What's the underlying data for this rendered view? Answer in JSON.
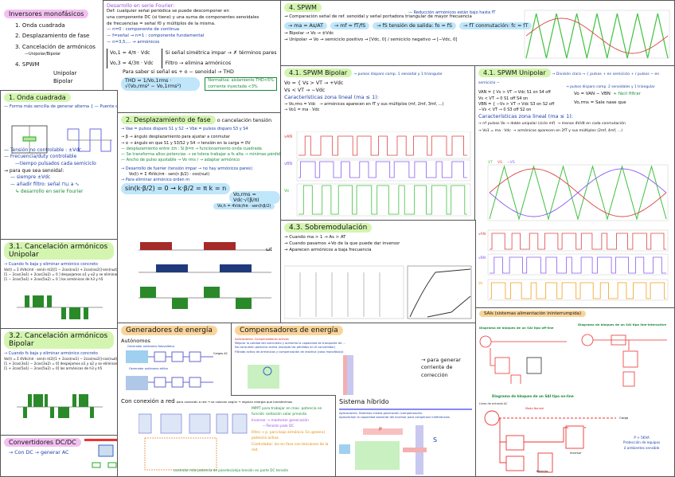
{
  "inversores": {
    "title": "Inversores monofásicos",
    "items": [
      "1. Onda cuadrada",
      "2. Desplazamiento de fase",
      "3. Cancelación de armónicos",
      "—Unipolar/Bipolar",
      "4. SPWM",
      "Unipolar",
      "Bipolar"
    ]
  },
  "fourier": {
    "title": "Desarrollo en serie Fourier:",
    "def": [
      "Def: cualquier señal periódica se puede descomponer en",
      "una componente DC (si tiene) y una suma de componentes senoidales",
      "de frecuencias = señal f0 y múltiplos de la misma."
    ],
    "notes": [
      "— n=0 : componente de continua",
      "— f=señal → n=1 : componente fundamental",
      "— n=3,5,... → armónicos"
    ],
    "eq1": "Vo,1 = 4/π · Vdc",
    "eq3": "Vo,3 = 4/3π · Vdc",
    "side": [
      "Si señal simétrica impar → ✗ términos pares",
      "Filtro → elimina armónicos"
    ],
    "thd_note": "Para saber si señal es + o − senoidal → THD",
    "thd": "THD = 1/Vo,1rms · √(Vo,rms² − Vo,1rms²)",
    "norma": [
      "Normativa: aislamiento THD<5%",
      "corriente inyectada <3%"
    ]
  },
  "onda": {
    "title": "1. Onda cuadrada",
    "lines": [
      "— Forma más sencilla de generar alterna { — Puente completo / — Carga resistiva",
      "— Tensión no controlable : ±Vdc",
      "— Frecuencia/duty controlable",
      "—tiempo pulsados cada semiciclo",
      "→ para que sea senoidal:",
      "— siempre ±Vdc",
      "— añadir filtro: señal ⊓⊔ a ∿",
      "↳ desarrollo en serie Fourier"
    ]
  },
  "desp": {
    "title": "2. Desplazamiento de fase",
    "subtitle": "o cancelación tensión",
    "lines": [
      "→ Vae = pulsos disparo S1 y S2   → Vbe = pulsos disparo S3 y S4",
      "→ β → ángulo desplazamiento para ajustar a conmutar",
      "→ α → ángulo en que S1 y S3/S2 y S4 → tensión en la carga = 0V",
      "— desplazamiento entre ±π : Si β=π → funcionamiento onda cuadrada",
      "— Se transforma altos potencias → se tolera trabajar a fs alta → mínimas pérdidas",
      "— Ancho de pulso ajustable → Vo rms / → adaptar armónico",
      "→ Desarrollo de fuerier (tensión impar → no hay armónicos pares):",
      "Vo(t) = Σ 4Vdc/nπ · sen(n β/2) · cos(nωt)",
      "→ Para eliminar armónico orden m",
      "sin(k·β/2) = 0 → k·β/2 = π      k = n"
    ],
    "vrms": "Vo,rms = Vdc·√(β/π)",
    "vh": "Vo,h = 4Vdc/hπ · sen(hβ/2)",
    "axis": "ωt"
  },
  "c31": {
    "title": "3.1. Cancelación armónicos Unipolar",
    "lines": [
      "→ Cuando fs baja y eliminar armónico concreto",
      "Vo(t) = Σ 4Vdc/nπ · sen(n π/2)[1 − 2cos(nα1) + 2cos(nα2)]·sen(nωt)",
      "[1 − 2cos(3α1) + 2cos(3α2) = 0  ] despejamos α1 y α2 y se eliminan",
      "[1 − 2cos(5α1) + 2cos(5α2) = 0  ] los armónicos de h3 y h5"
    ]
  },
  "c32": {
    "title": "3.2. Cancelación armónicos Bipolar",
    "lines": [
      "→ Cuando fs baja y eliminar armónico concreto",
      "Vo(t) = Σ 4Vdc/nπ · sen(n π/2)[1 + 2cos(nα1) − 2cos(nα2)]·cos(nωt)",
      "[1 + 2cos(3α1) − 2cos(3α2) = 0] despejamos α1 y α2 y se eliminan",
      "[1 + 2cos(5α1) − 2cos(5α2) = 0] los armónicos de h3 y h5"
    ]
  },
  "dcdc": {
    "title": "Convertidores DC/DC",
    "line": "→ Con DC → generar AC"
  },
  "spwm": {
    "title": "4. SPWM",
    "reduccion": "— Reducción armónicos están bajo hasta fT",
    "lines": [
      "→ Comparación señal de ref. senoidal y señal portadora triangular de mayor frecuencia"
    ],
    "ma": "→ ma = As/AT",
    "mf": "→ mf = fT/fS",
    "fo": "→ fS tensión de salida: fo = fS",
    "fc": "→ fT conmutación: fc = fT",
    "bip": "→ Bipolar → Vo → ±Vdc",
    "uni": "→ Unipolar → Vo → semiciclo positivo → [Vdc, 0] / semiciclo negativo → [−Vdc, 0]",
    "chart": {
      "labels": [
        "VT",
        "VS",
        "AT",
        "AS",
        "TT",
        "TS"
      ]
    }
  },
  "bip": {
    "title": "4.1. SPWM Bipolar",
    "note": "→ pulsos disparo comp. 1 senoidal y 1 triangular",
    "eq": [
      "Vo = { Vs > VT → +Vdc",
      "       Vs < VT → −Vdc"
    ],
    "car": "Características zona lineal (ma ≤ 1):",
    "c": [
      "→ Vo,rms = Vdc",
      "→ armónicos aparecen en fT y sus múltiplos (mf, 2mf, 3mf, ...)",
      "→ Vo1 = ma · Vdc"
    ],
    "labels": [
      "vAN",
      "vBN",
      "Vo"
    ]
  },
  "uni": {
    "title": "4.1. SPWM Unipolar",
    "div": "→ División clara → { pulsos + en semiciclo + / pulsos − en semiciclo −",
    "note": "→ pulsos disparo comp. 2 senoidales y 1 triangular",
    "eq": [
      "VAN = { Vs > VT → Vdc  S1 on S4 off",
      "        Vs < VT → 0   S1 off S4 on",
      "VBN = { −Vs > VT → Vdc  S3 on S2 off",
      "        −Vs < VT → 0   S3 off S2 on"
    ],
    "vo": "Vo = VAN − VBN",
    "filt": "+ fácil filtrar",
    "vorms": "Vo,rms = Sale nase que",
    "car": "Características zona lineal (ma ≤ 1):",
    "c": [
      "→ nº pulsos Vo → doble unipolar (ciclo mf)",
      "→ menos dV/dt en cada conmutación",
      "→ Vo1 = ma · Vdc",
      "→ armónicos aparecen en 2fT y sus múltiplos (2mf, 4mf, ...)"
    ],
    "labels": [
      "VT",
      "VS",
      "−VS",
      "vAN",
      "vBN",
      "Vo"
    ]
  },
  "sobre": {
    "title": "4.3. Sobremodulación",
    "lines": [
      "→ Cuando ma > 1 → As > AT",
      "→ Cuando pasamos +Vo de la que puede dar inversor",
      "→ Aparecen armónicos a baja frecuencia"
    ]
  },
  "gen": {
    "title": "Generadores de energía",
    "aut": "Autónomos",
    "labels": [
      "Generador autónomo fotovoltaico",
      "Generador autónomo eólico",
      "Baterías",
      "Inversor",
      "Cargas AC",
      "Cargas DC"
    ],
    "red": "Con conexión a red",
    "red_note": "para conexión a red → se colocan según → regulan energía que transferimos",
    "red_lines": [
      "MPPT para trabajar en max. potencia en función radiación solar prevista",
      "Inversor → mantener generación",
      "—Tensión palo DC",
      "Filtro → p. para bajo armónico. En general potencia activa",
      "Controlador: Ios en fase con tensiones de la red.",
      "controlar más potencia de paneles/aleja tensión en parte DC tensión"
    ]
  },
  "comp": {
    "title": "Compensadores de energía",
    "apl": [
      "Aplicaciones: Compensadores activos",
      "Mejorar la calidad del suministro y aumenta la capacidad de transporte de ...",
      "No consumen potencia activa (excepto las pérdidas en el convertidor)",
      "Filtrado activo de armónicos y compensación de reactiva (caso monofásico)"
    ],
    "note": "→ para generar corriente de corrección"
  },
  "hib": {
    "title": "Sistema híbrido",
    "apl": [
      "Aplicaciones: Sistemas mixtos generación /compensación.",
      "Aprovechan la capacidad sobrante del inversor para compensar ineficiencias."
    ],
    "p": "P",
    "s": "S"
  },
  "sai": {
    "title": "SAIs (sistemas alimentación ininterrumpida)",
    "d1": "Diagrama de bloques de un SAI tipo off-line",
    "d2": "Diagrama de bloques de un SAI tipo line-interactive",
    "d3": "Diagrama de bloques de un SAI tipo on-line",
    "linea": "Línea de entrada AC",
    "carga": "Carga",
    "modo": "Modo Normal",
    "func": "Funcionamiento normal",
    "bat": "Baterías",
    "inv": "Inversor",
    "rect": "Rectificador Cargador",
    "pfc": "Rectificador PFC",
    "cargador": "Cargador de Baterías",
    "sw": "Switch de control de flujo",
    "p": "P > 5KVA",
    "prot1": "Protección de equipos",
    "prot2": "ó ambientes sensible"
  }
}
